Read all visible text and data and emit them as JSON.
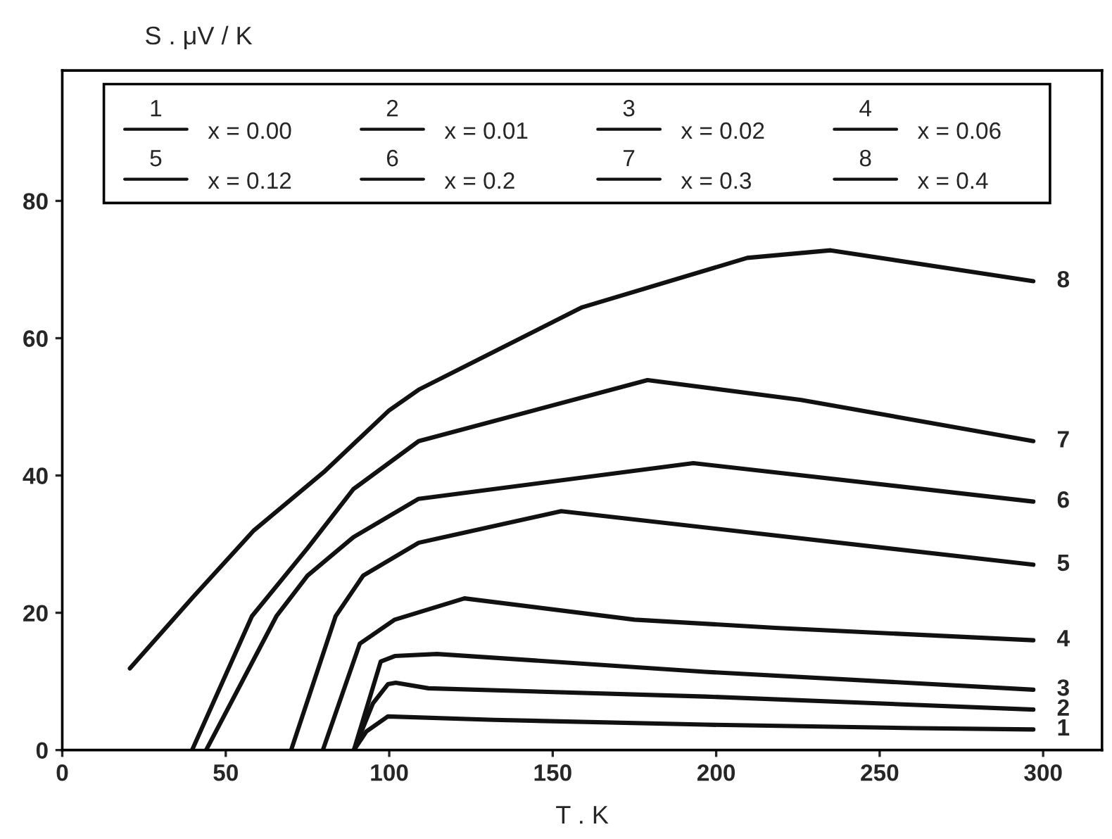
{
  "chart_data": {
    "type": "line",
    "xlabel": "T . K",
    "ylabel": "S . μV / K",
    "xlim": [
      0,
      318
    ],
    "ylim": [
      0,
      99
    ],
    "xticks": [
      0,
      50,
      100,
      150,
      200,
      250,
      300
    ],
    "yticks": [
      0,
      20,
      40,
      60,
      80
    ],
    "grid": false,
    "legend": "top",
    "marker": "none",
    "line_style": "solid",
    "annotations": [
      "x = 0.00",
      "x = 0.01",
      "x = 0.02",
      "x = 0.06",
      "x = 0.12",
      "x = 0.2",
      "x = 0.3",
      "x = 0.4"
    ],
    "series": [
      {
        "name": "1",
        "color": "#111111",
        "x": [
          89.2,
          93,
          99.6,
          132,
          196.6,
          261,
          297
        ],
        "values": [
          0,
          2.7,
          4.9,
          4.4,
          3.7,
          3.2,
          3.0
        ]
      },
      {
        "name": "2",
        "color": "#111111",
        "x": [
          89.2,
          95,
          99.6,
          102,
          112,
          196.6,
          297
        ],
        "values": [
          0,
          6.8,
          9.6,
          9.8,
          9.0,
          7.8,
          5.9
        ]
      },
      {
        "name": "3",
        "color": "#111111",
        "x": [
          89.2,
          97.4,
          101.7,
          114.6,
          196.6,
          297
        ],
        "values": [
          0,
          12.9,
          13.7,
          14.0,
          11.4,
          8.8
        ]
      },
      {
        "name": "4",
        "color": "#111111",
        "x": [
          79.7,
          91,
          101.7,
          123,
          175,
          218,
          297
        ],
        "values": [
          0,
          15.5,
          19.0,
          22.1,
          19.0,
          17.8,
          16.0
        ]
      },
      {
        "name": "5",
        "color": "#111111",
        "x": [
          70,
          83.6,
          92,
          109,
          152.6,
          297
        ],
        "values": [
          0,
          19.5,
          25.4,
          30.2,
          34.8,
          27.0
        ]
      },
      {
        "name": "6",
        "color": "#111111",
        "x": [
          44,
          65.5,
          75,
          89,
          109,
          193,
          297
        ],
        "values": [
          0,
          19.5,
          25.4,
          31.0,
          36.6,
          41.8,
          36.2
        ]
      },
      {
        "name": "7",
        "color": "#111111",
        "x": [
          39.7,
          58,
          75,
          89,
          109,
          179,
          226,
          297
        ],
        "values": [
          0,
          19.5,
          29.4,
          38.0,
          45.0,
          53.9,
          51.0,
          45.0
        ]
      },
      {
        "name": "8",
        "color": "#111111",
        "x": [
          20.7,
          40,
          58.6,
          80,
          100,
          109,
          159,
          209.5,
          235,
          297
        ],
        "values": [
          11.9,
          22.3,
          32.0,
          40.5,
          49.5,
          52.5,
          64.5,
          71.7,
          72.8,
          68.3
        ]
      }
    ]
  }
}
